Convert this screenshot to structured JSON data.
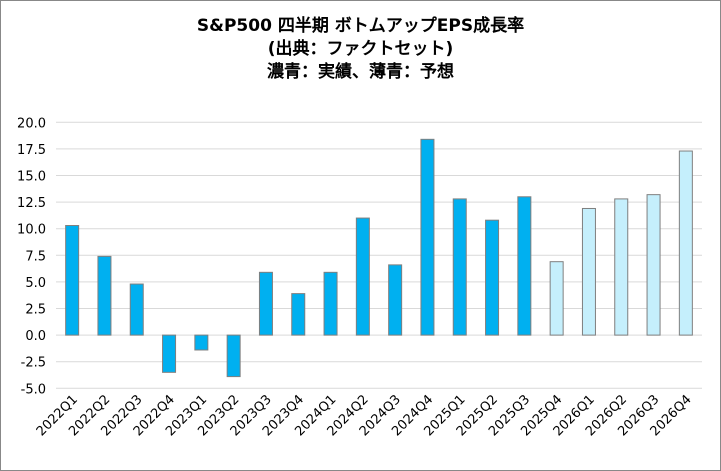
{
  "chart_data": {
    "type": "bar",
    "title": [
      "S&P500 四半期 ボトムアップEPS成長率",
      "(出典：ファクトセット)",
      "濃青：実績、薄青：予想"
    ],
    "categories": [
      "2022Q1",
      "2022Q2",
      "2022Q3",
      "2022Q4",
      "2023Q1",
      "2023Q2",
      "2023Q3",
      "2023Q4",
      "2024Q1",
      "2024Q2",
      "2024Q3",
      "2024Q4",
      "2025Q1",
      "2025Q2",
      "2025Q3",
      "2025Q4",
      "2026Q1",
      "2026Q2",
      "2026Q3",
      "2026Q4"
    ],
    "values": [
      10.3,
      7.4,
      4.8,
      -3.5,
      -1.4,
      -3.9,
      5.9,
      3.9,
      5.9,
      11.0,
      6.6,
      18.4,
      12.8,
      10.8,
      13.0,
      6.9,
      11.9,
      12.8,
      13.2,
      17.3
    ],
    "kind": [
      "actual",
      "actual",
      "actual",
      "actual",
      "actual",
      "actual",
      "actual",
      "actual",
      "actual",
      "actual",
      "actual",
      "actual",
      "actual",
      "actual",
      "actual",
      "estimate",
      "estimate",
      "estimate",
      "estimate",
      "estimate"
    ],
    "colors": {
      "actual": "#00B0F0",
      "estimate": "#C5EFFC",
      "bar_border": "#7F7F7F",
      "grid": "#D9D9D9"
    },
    "ylim": [
      -5,
      20
    ],
    "yticks": [
      "20.0",
      "17.5",
      "15.0",
      "12.5",
      "10.0",
      "7.5",
      "5.0",
      "2.5",
      "0.0",
      "-2.5",
      "-5.0"
    ],
    "grid": true,
    "xlabel": "",
    "ylabel": ""
  }
}
